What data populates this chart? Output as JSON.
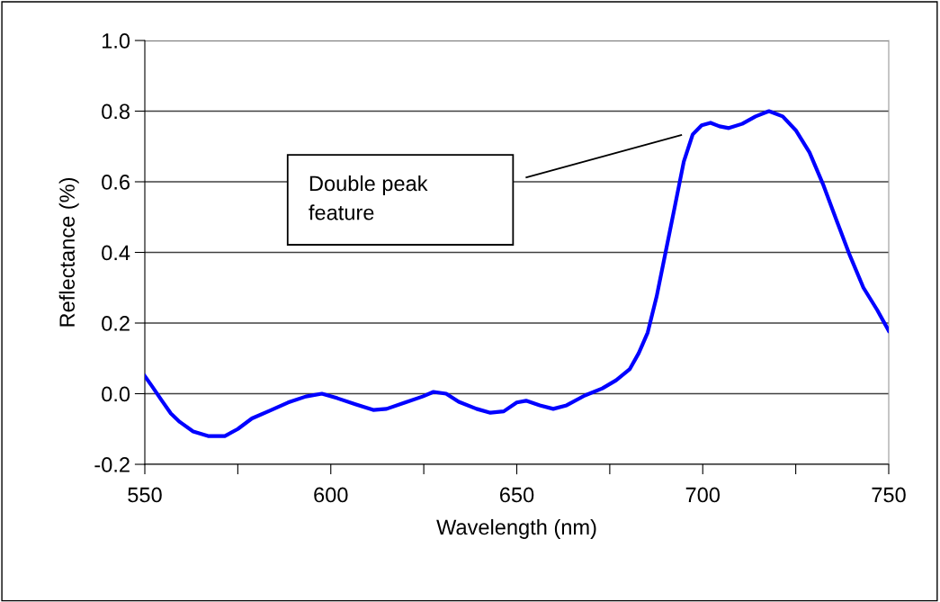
{
  "chart_data": {
    "type": "line",
    "xlabel": "Wavelength (nm)",
    "ylabel": "Reflectance (%)",
    "x": [
      550,
      552,
      554.6,
      557,
      559.4,
      563,
      567,
      571.5,
      575,
      578.8,
      583.6,
      588.5,
      593.3,
      597.6,
      601.8,
      606.6,
      611.4,
      615,
      620,
      624.7,
      627.6,
      631,
      634.4,
      639.2,
      642.9,
      646.5,
      650,
      652.5,
      656.2,
      659.8,
      663.4,
      668.3,
      673,
      676.7,
      680.4,
      682.8,
      685.2,
      687.6,
      690,
      692.4,
      694.9,
      697.3,
      699.7,
      702.1,
      704.5,
      707,
      710.6,
      714.2,
      717.8,
      721.5,
      725,
      728.7,
      732.3,
      736,
      739.6,
      743.2,
      746.9,
      750
    ],
    "series": [
      {
        "color": "#0000ff",
        "values": [
          0.05,
          0.02,
          -0.02,
          -0.056,
          -0.08,
          -0.107,
          -0.12,
          -0.12,
          -0.1,
          -0.07,
          -0.048,
          -0.025,
          -0.008,
          0.0,
          -0.013,
          -0.03,
          -0.046,
          -0.043,
          -0.025,
          -0.008,
          0.005,
          0.0,
          -0.023,
          -0.043,
          -0.054,
          -0.05,
          -0.025,
          -0.02,
          -0.033,
          -0.043,
          -0.033,
          -0.005,
          0.015,
          0.038,
          0.07,
          0.115,
          0.173,
          0.275,
          0.4,
          0.525,
          0.657,
          0.734,
          0.76,
          0.767,
          0.757,
          0.752,
          0.764,
          0.785,
          0.8,
          0.785,
          0.746,
          0.683,
          0.594,
          0.49,
          0.39,
          0.3,
          0.237,
          0.178
        ]
      }
    ],
    "xlim": [
      550,
      750
    ],
    "xticks": [
      550,
      {
        "value": 575,
        "label": null
      },
      600,
      {
        "value": 625,
        "label": null
      },
      650,
      {
        "value": 675,
        "label": null
      },
      700,
      {
        "value": 725,
        "label": null
      },
      750
    ],
    "ylim": [
      -0.2,
      1.0
    ],
    "yticks": [
      {
        "value": -0.2,
        "label": "-0.2"
      },
      {
        "value": 0.0,
        "label": "0.0"
      },
      {
        "value": 0.2,
        "label": "0.2"
      },
      {
        "value": 0.4,
        "label": "0.4"
      },
      {
        "value": 0.6,
        "label": "0.6"
      },
      {
        "value": 0.8,
        "label": "0.8"
      },
      {
        "value": 1.0,
        "label": "1.0"
      }
    ],
    "grid": "y",
    "marker": "none",
    "line_style": "solid",
    "annotations": [
      "Double peak\nfeature"
    ]
  }
}
